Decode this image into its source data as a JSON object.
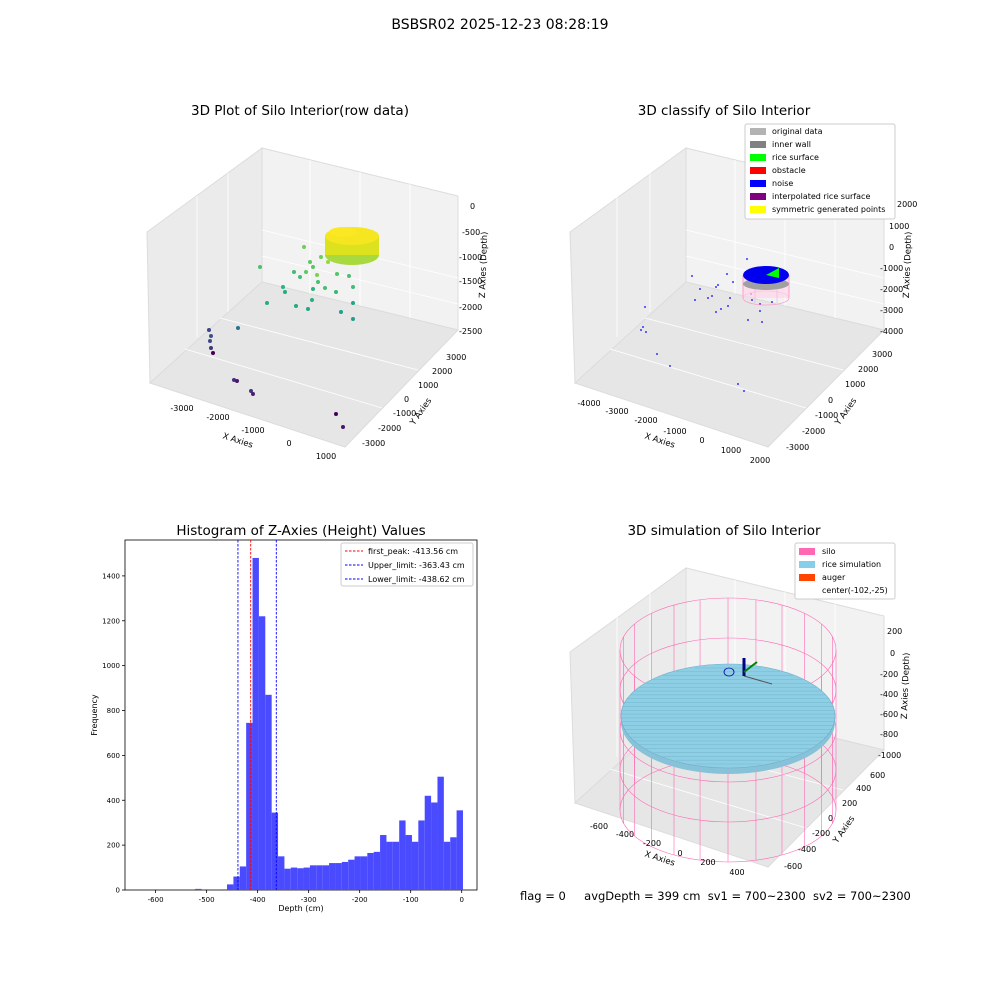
{
  "figure": {
    "title": "BSBSR02 2025-12-23 08:28:19",
    "status": {
      "flag": "flag = 0",
      "avg": "avgDepth = 399 cm",
      "sv1": "sv1 = 700~2300",
      "sv2": "sv2 = 700~2300"
    }
  },
  "colors": {
    "hist_bar": "#4a4aff",
    "peak_line": "#ff0000",
    "limit_line": "#0000ff",
    "silo": "#ff69b4",
    "rice": "#87ceeb",
    "auger": "#ff4500",
    "original": "#b3b3b3",
    "inner_wall": "#808080",
    "rice_surface": "#00ff00",
    "obstacle": "#ff0000",
    "noise": "#0000ff",
    "interpolated": "#800080",
    "symmetric": "#ffff00"
  },
  "chart_data": [
    {
      "type": "scatter",
      "subtype": "3d",
      "title": "3D Plot of Silo Interior(row data)",
      "xlabel": "X Axies",
      "ylabel": "Y Axies",
      "zlabel": "Z Axies (Depth)",
      "x_ticks": [
        "-3000",
        "-2000",
        "-1000",
        "0",
        "1000"
      ],
      "y_ticks": [
        "-3000",
        "-2000",
        "-1000",
        "0",
        "1000",
        "2000",
        "3000"
      ],
      "z_ticks": [
        "0",
        "-500",
        "-1000",
        "-1500",
        "-2000",
        "-2500"
      ],
      "colormap": "viridis"
    },
    {
      "type": "scatter",
      "subtype": "3d",
      "title": "3D classify of Silo Interior",
      "xlabel": "X Axies",
      "ylabel": "Y Axies",
      "zlabel": "Z Axies (Depth)",
      "x_ticks": [
        "-4000",
        "-3000",
        "-2000",
        "-1000",
        "0",
        "1000",
        "2000"
      ],
      "y_ticks": [
        "-3000",
        "-2000",
        "-1000",
        "0",
        "1000",
        "2000",
        "3000"
      ],
      "z_ticks": [
        "2000",
        "1000",
        "0",
        "-1000",
        "-2000",
        "-3000",
        "-4000"
      ],
      "legend": [
        "original data",
        "inner wall",
        "rice surface",
        "obstacle",
        "noise",
        "interpolated rice surface",
        "symmetric generated points"
      ],
      "legend_position": "top-right"
    },
    {
      "type": "bar",
      "subtype": "histogram",
      "title": "Histogram of Z-Axies (Height) Values",
      "xlabel": "Depth (cm)",
      "ylabel": "Frequency",
      "xlim": [
        -660,
        30
      ],
      "ylim": [
        0,
        1560
      ],
      "x_ticks": [
        -600,
        -500,
        -400,
        -300,
        -200,
        -100,
        0
      ],
      "y_ticks": [
        0,
        200,
        400,
        600,
        800,
        1000,
        1200,
        1400
      ],
      "bin_start": -522.5,
      "bin_width": 12.5,
      "values": [
        5,
        0,
        0,
        0,
        3,
        25,
        60,
        105,
        745,
        1480,
        1220,
        870,
        345,
        150,
        95,
        100,
        97,
        100,
        110,
        110,
        110,
        120,
        120,
        125,
        135,
        150,
        150,
        165,
        170,
        245,
        215,
        215,
        310,
        245,
        215,
        310,
        420,
        390,
        505,
        215,
        235,
        355
      ],
      "vlines": [
        {
          "x": -413.56,
          "label": "first_peak: -413.56 cm",
          "color": "#ff0000"
        },
        {
          "x": -363.43,
          "label": "Upper_limit: -363.43 cm",
          "color": "#0000ff"
        },
        {
          "x": -438.62,
          "label": "Lower_limit: -438.62 cm",
          "color": "#0000ff"
        }
      ],
      "legend_position": "top-right"
    },
    {
      "type": "area",
      "subtype": "3d-surface",
      "title": "3D simulation of Silo Interior",
      "xlabel": "X Axies",
      "ylabel": "Y Axies",
      "zlabel": "Z Axies (Depth)",
      "x_ticks": [
        "-600",
        "-400",
        "-200",
        "0",
        "200",
        "400"
      ],
      "y_ticks": [
        "-600",
        "-400",
        "-200",
        "0",
        "200",
        "400",
        "600"
      ],
      "z_ticks": [
        "200",
        "0",
        "-200",
        "-400",
        "-600",
        "-800",
        "-1000"
      ],
      "legend": [
        "silo",
        "rice simulation",
        "auger",
        "center(-102,-25)"
      ],
      "legend_position": "top-right"
    }
  ]
}
